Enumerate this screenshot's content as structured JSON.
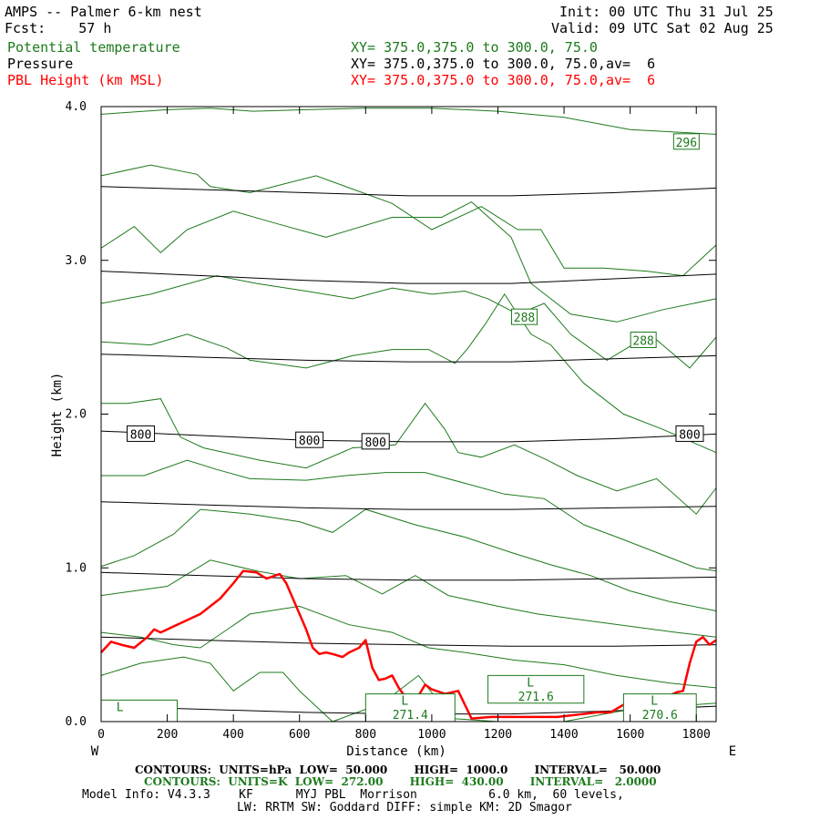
{
  "header": {
    "title": "AMPS -- Palmer 6-km nest",
    "forecast": "Fcst:    57 h",
    "init": "Init: 00 UTC Thu 31 Jul 25",
    "valid": "Valid: 09 UTC Sat 02 Aug 25",
    "fields": [
      {
        "name": "Potential temperature",
        "xy": "XY= 375.0,375.0 to 300.0, 75.0",
        "color": "#1d7a1d"
      },
      {
        "name": "Pressure",
        "xy": "XY= 375.0,375.0 to 300.0, 75.0,av=  6",
        "color": "#000000"
      },
      {
        "name": "PBL Height (km MSL)",
        "xy": "XY= 375.0,375.0 to 300.0, 75.0,av=  6",
        "color": "#ff0000"
      }
    ]
  },
  "footer": {
    "pressure_contours": "CONTOURS:  UNITS=hPa  LOW=  50.000       HIGH=  1000.0       INTERVAL=   50.000",
    "theta_contours": "CONTOURS:  UNITS=K  LOW=  272.00       HIGH=  430.00       INTERVAL=   2.0000",
    "model_info": "Model Info: V4.3.3    KF      MYJ PBL  Morrison          6.0 km,  60 levels,",
    "physics": "LW: RRTM SW: Goddard DIFF: simple KM: 2D Smagor"
  },
  "chart_data": {
    "type": "line",
    "xlabel": "Distance (km)",
    "ylabel": "Height (km)",
    "xlim": [
      0,
      1860
    ],
    "ylim": [
      0,
      4
    ],
    "x_ticks": [
      "0",
      "200",
      "400",
      "600",
      "800",
      "1000",
      "1200",
      "1400",
      "1600",
      "1800"
    ],
    "y_ticks": [
      "0.0",
      "1.0",
      "2.0",
      "3.0",
      "4.0"
    ],
    "x_left_label": "W",
    "x_right_label": "E",
    "colors": {
      "pressure": "#000000",
      "theta": "#1d7a1d",
      "pbl": "#ff0000"
    },
    "pressure_isobars": [
      {
        "h": [
          0.1,
          0.08,
          0.06,
          0.05,
          0.05,
          0.07,
          0.1
        ]
      },
      {
        "h": [
          0.55,
          0.53,
          0.51,
          0.5,
          0.49,
          0.49,
          0.5
        ]
      },
      {
        "h": [
          0.97,
          0.95,
          0.93,
          0.92,
          0.92,
          0.93,
          0.94
        ]
      },
      {
        "h": [
          1.43,
          1.41,
          1.39,
          1.38,
          1.38,
          1.39,
          1.4
        ]
      },
      {
        "h": [
          1.89,
          1.86,
          1.83,
          1.82,
          1.82,
          1.84,
          1.87
        ]
      },
      {
        "h": [
          2.39,
          2.37,
          2.35,
          2.34,
          2.34,
          2.36,
          2.38
        ]
      },
      {
        "h": [
          2.93,
          2.9,
          2.87,
          2.85,
          2.85,
          2.88,
          2.91
        ]
      },
      {
        "h": [
          3.48,
          3.46,
          3.44,
          3.42,
          3.42,
          3.44,
          3.47
        ]
      }
    ],
    "pressure_labels": [
      {
        "text": "800",
        "x": 120,
        "h": 1.87
      },
      {
        "text": "800",
        "x": 630,
        "h": 1.83
      },
      {
        "text": "800",
        "x": 830,
        "h": 1.82
      },
      {
        "text": "800",
        "x": 1780,
        "h": 1.87
      }
    ],
    "theta_isentropes": [
      {
        "x": [
          0,
          200,
          330,
          460,
          620,
          800,
          1000,
          1200,
          1400,
          1600,
          1860
        ],
        "h": [
          3.95,
          3.98,
          3.99,
          3.97,
          3.98,
          3.99,
          3.99,
          3.97,
          3.93,
          3.85,
          3.82
        ]
      },
      {
        "x": [
          0,
          150,
          290,
          330,
          450,
          650,
          880,
          1000,
          1150,
          1260,
          1330,
          1400,
          1520,
          1650,
          1760,
          1860
        ],
        "h": [
          3.55,
          3.62,
          3.56,
          3.48,
          3.44,
          3.55,
          3.37,
          3.2,
          3.35,
          3.2,
          3.2,
          2.95,
          2.95,
          2.93,
          2.9,
          3.1
        ]
      },
      {
        "x": [
          0,
          100,
          180,
          260,
          400,
          530,
          680,
          880,
          1030,
          1120,
          1240,
          1300,
          1420,
          1560,
          1700,
          1860
        ],
        "h": [
          3.08,
          3.22,
          3.05,
          3.2,
          3.32,
          3.24,
          3.15,
          3.28,
          3.28,
          3.38,
          3.15,
          2.85,
          2.65,
          2.6,
          2.68,
          2.75
        ]
      },
      {
        "x": [
          0,
          150,
          350,
          470,
          620,
          760,
          880,
          1000,
          1100,
          1170,
          1260,
          1340,
          1420,
          1530,
          1660,
          1780,
          1860
        ],
        "h": [
          2.72,
          2.78,
          2.9,
          2.85,
          2.8,
          2.75,
          2.82,
          2.78,
          2.8,
          2.75,
          2.65,
          2.72,
          2.52,
          2.35,
          2.52,
          2.3,
          2.5
        ]
      },
      {
        "x": [
          0,
          150,
          260,
          380,
          450,
          620,
          760,
          880,
          990,
          1070,
          1110,
          1160,
          1220,
          1300,
          1360,
          1460,
          1580,
          1700,
          1860
        ],
        "h": [
          2.47,
          2.45,
          2.52,
          2.43,
          2.35,
          2.3,
          2.38,
          2.42,
          2.42,
          2.33,
          2.43,
          2.58,
          2.78,
          2.52,
          2.45,
          2.2,
          2.0,
          1.9,
          1.75
        ]
      },
      {
        "x": [
          0,
          80,
          180,
          240,
          310,
          480,
          620,
          760,
          890,
          980,
          1040,
          1080,
          1150,
          1250,
          1350,
          1440,
          1560,
          1680,
          1800,
          1860
        ],
        "h": [
          2.07,
          2.07,
          2.1,
          1.85,
          1.78,
          1.7,
          1.65,
          1.78,
          1.8,
          2.07,
          1.9,
          1.75,
          1.72,
          1.8,
          1.7,
          1.6,
          1.5,
          1.58,
          1.35,
          1.52
        ]
      },
      {
        "x": [
          0,
          130,
          260,
          350,
          450,
          620,
          740,
          860,
          980,
          1100,
          1220,
          1340,
          1460,
          1560,
          1680,
          1800,
          1860
        ],
        "h": [
          1.6,
          1.6,
          1.7,
          1.64,
          1.58,
          1.57,
          1.6,
          1.62,
          1.62,
          1.55,
          1.48,
          1.45,
          1.28,
          1.2,
          1.1,
          1.0,
          0.98
        ]
      },
      {
        "x": [
          0,
          100,
          220,
          300,
          450,
          600,
          700,
          800,
          950,
          1100,
          1240,
          1360,
          1480,
          1600,
          1720,
          1860
        ],
        "h": [
          1.01,
          1.08,
          1.22,
          1.38,
          1.35,
          1.3,
          1.23,
          1.38,
          1.28,
          1.2,
          1.1,
          1.02,
          0.95,
          0.85,
          0.78,
          0.72
        ]
      },
      {
        "x": [
          0,
          200,
          330,
          470,
          600,
          740,
          850,
          950,
          1050,
          1200,
          1320,
          1460,
          1600,
          1740,
          1860
        ],
        "h": [
          0.82,
          0.88,
          1.05,
          0.98,
          0.93,
          0.95,
          0.83,
          0.95,
          0.82,
          0.75,
          0.7,
          0.66,
          0.62,
          0.58,
          0.55
        ]
      },
      {
        "x": [
          0,
          120,
          220,
          300,
          450,
          600,
          750,
          880,
          990,
          1100,
          1250,
          1400,
          1560,
          1720,
          1860
        ],
        "h": [
          0.58,
          0.55,
          0.5,
          0.48,
          0.7,
          0.75,
          0.63,
          0.58,
          0.48,
          0.45,
          0.4,
          0.37,
          0.3,
          0.25,
          0.22
        ]
      },
      {
        "x": [
          0,
          120,
          250,
          330,
          400,
          480,
          550,
          600,
          700,
          850,
          960,
          1060,
          1200,
          1400,
          1600,
          1860
        ],
        "h": [
          0.3,
          0.38,
          0.42,
          0.38,
          0.2,
          0.32,
          0.32,
          0.2,
          0.0,
          0.12,
          0.3,
          0.02,
          0.0,
          0.0,
          0.08,
          0.12
        ]
      }
    ],
    "theta_labels": [
      {
        "text": "296",
        "x": 1770,
        "h": 3.77
      },
      {
        "text": "288",
        "x": 1280,
        "h": 2.63
      },
      {
        "text": "288",
        "x": 1640,
        "h": 2.48
      }
    ],
    "low_markers": [
      {
        "text": "L",
        "value": "",
        "x": [
          0,
          230
        ],
        "h": [
          0.0,
          0.14
        ]
      },
      {
        "text": "L",
        "value": "271.4",
        "x": [
          800,
          1070
        ],
        "h": [
          0.0,
          0.18
        ]
      },
      {
        "text": "L",
        "value": "271.6",
        "x": [
          1170,
          1460
        ],
        "h": [
          0.12,
          0.3
        ]
      },
      {
        "text": "L",
        "value": "270.6",
        "x": [
          1580,
          1800
        ],
        "h": [
          0.0,
          0.18
        ]
      }
    ],
    "series": [
      {
        "name": "PBL Height (km MSL)",
        "x": [
          0,
          30,
          60,
          100,
          140,
          160,
          180,
          200,
          220,
          260,
          300,
          330,
          360,
          400,
          430,
          470,
          500,
          540,
          560,
          590,
          620,
          640,
          660,
          680,
          700,
          730,
          750,
          780,
          800,
          820,
          840,
          860,
          880,
          900,
          920,
          940,
          960,
          980,
          1000,
          1040,
          1080,
          1120,
          1180,
          1240,
          1300,
          1340,
          1380,
          1420,
          1460,
          1500,
          1540,
          1580,
          1620,
          1660,
          1700,
          1740,
          1760,
          1780,
          1800,
          1820,
          1840,
          1860
        ],
        "h": [
          0.45,
          0.52,
          0.5,
          0.48,
          0.55,
          0.6,
          0.58,
          0.6,
          0.62,
          0.66,
          0.7,
          0.75,
          0.8,
          0.9,
          0.98,
          0.97,
          0.93,
          0.96,
          0.9,
          0.75,
          0.6,
          0.48,
          0.44,
          0.45,
          0.44,
          0.42,
          0.45,
          0.48,
          0.53,
          0.35,
          0.27,
          0.28,
          0.3,
          0.22,
          0.16,
          0.1,
          0.17,
          0.24,
          0.21,
          0.18,
          0.2,
          0.02,
          0.03,
          0.03,
          0.03,
          0.03,
          0.03,
          0.04,
          0.05,
          0.06,
          0.06,
          0.11,
          0.12,
          0.14,
          0.15,
          0.19,
          0.2,
          0.38,
          0.52,
          0.55,
          0.5,
          0.53
        ]
      }
    ]
  }
}
